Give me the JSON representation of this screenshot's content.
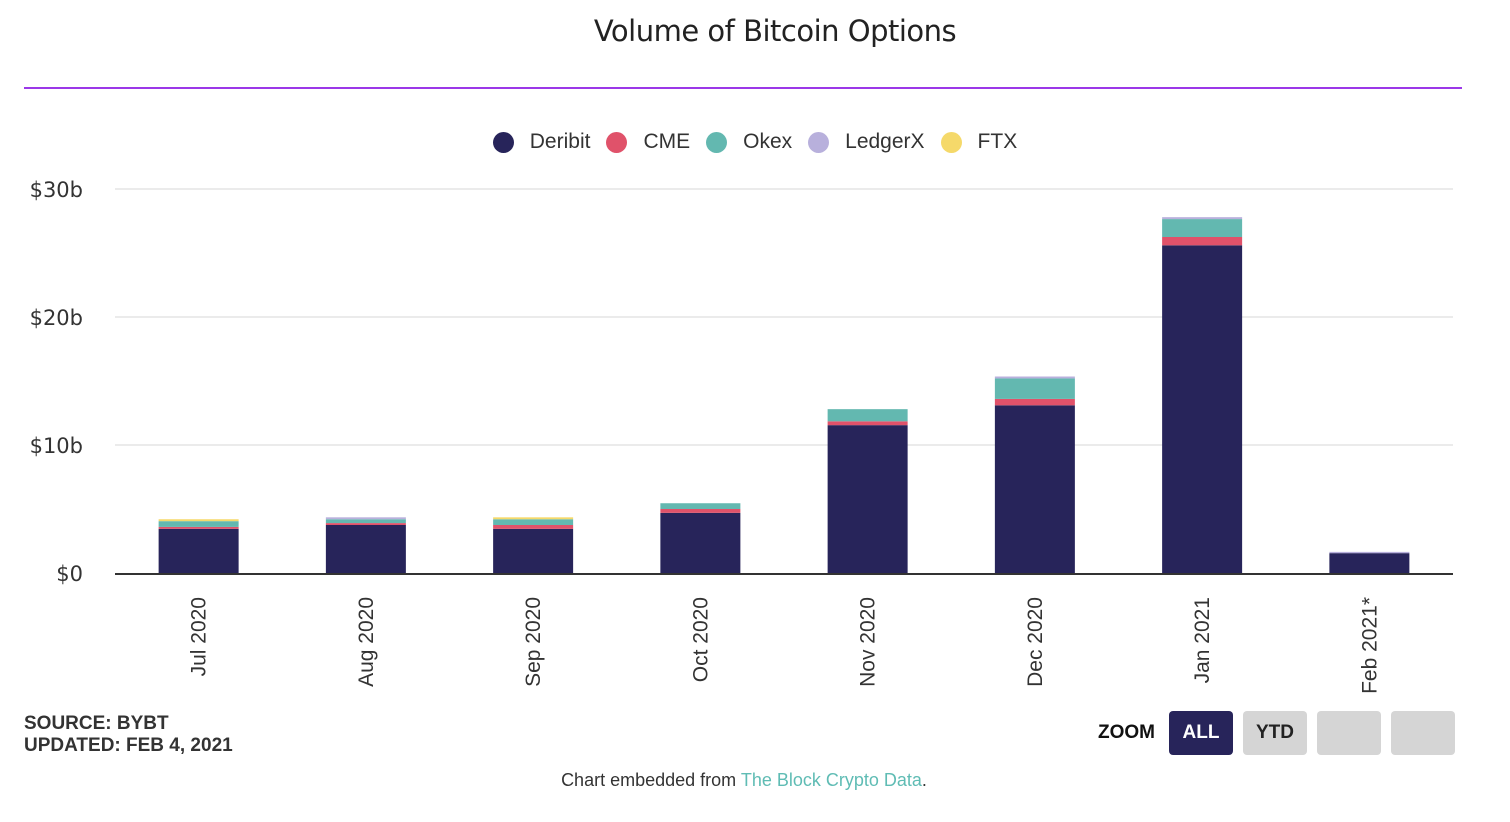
{
  "title": "Volume of Bitcoin Options",
  "colors": {
    "title_rule": "#9b38e8",
    "deribit": "#27245a",
    "cme": "#e0526a",
    "okex": "#63b8b0",
    "ledgerx": "#b8b0dc",
    "ftx": "#f5d96a"
  },
  "chart_data": {
    "type": "bar",
    "stacked": true,
    "title": "Volume of Bitcoin Options",
    "xlabel": "",
    "ylabel": "",
    "ylim": [
      0,
      30
    ],
    "y_unit": "billion USD",
    "y_ticks": [
      {
        "value": 0,
        "label": "$0"
      },
      {
        "value": 10,
        "label": "$10b"
      },
      {
        "value": 20,
        "label": "$20b"
      },
      {
        "value": 30,
        "label": "$30b"
      }
    ],
    "grid": true,
    "legend_position": "top-center",
    "categories": [
      "Jul 2020",
      "Aug 2020",
      "Sep 2020",
      "Oct 2020",
      "Nov 2020",
      "Dec 2020",
      "Jan 2021",
      "Feb 2021*"
    ],
    "series": [
      {
        "name": "Deribit",
        "color": "#27245a",
        "values": [
          3.45,
          3.75,
          3.45,
          4.7,
          11.55,
          13.1,
          25.6,
          1.55
        ]
      },
      {
        "name": "CME",
        "color": "#e0526a",
        "values": [
          0.15,
          0.15,
          0.3,
          0.3,
          0.3,
          0.5,
          0.65,
          0.0
        ]
      },
      {
        "name": "Okex",
        "color": "#63b8b0",
        "values": [
          0.45,
          0.3,
          0.45,
          0.45,
          0.95,
          1.6,
          1.4,
          0.0
        ]
      },
      {
        "name": "LedgerX",
        "color": "#b8b0dc",
        "values": [
          0.0,
          0.15,
          0.0,
          0.0,
          0.0,
          0.15,
          0.15,
          0.1
        ]
      },
      {
        "name": "FTX",
        "color": "#f5d96a",
        "values": [
          0.15,
          0.0,
          0.15,
          0.0,
          0.0,
          0.0,
          0.0,
          0.0
        ]
      }
    ]
  },
  "legend": [
    {
      "label": "Deribit",
      "color": "#27245a"
    },
    {
      "label": "CME",
      "color": "#e0526a"
    },
    {
      "label": "Okex",
      "color": "#63b8b0"
    },
    {
      "label": "LedgerX",
      "color": "#b8b0dc"
    },
    {
      "label": "FTX",
      "color": "#f5d96a"
    }
  ],
  "footer": {
    "source": "SOURCE: BYBT",
    "updated": "UPDATED: FEB 4, 2021",
    "embed_prefix": "Chart embedded from ",
    "embed_link": "The Block Crypto Data",
    "embed_suffix": "."
  },
  "zoom": {
    "label": "ZOOM",
    "buttons": [
      {
        "label": "ALL",
        "active": true
      },
      {
        "label": "YTD",
        "active": false
      },
      {
        "label": "",
        "active": false
      },
      {
        "label": "",
        "active": false
      }
    ]
  }
}
